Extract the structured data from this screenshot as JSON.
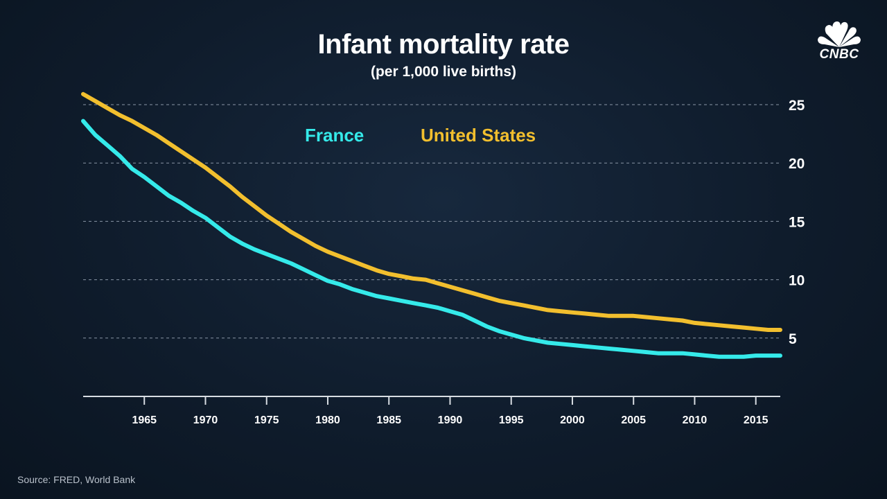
{
  "brand": {
    "logo_text": "CNBC",
    "peacock_colors": [
      "#ffffff"
    ]
  },
  "source_text": "Source: FRED, World Bank",
  "colors": {
    "france": "#35eaea",
    "united_states": "#f2bf2e",
    "grid": "#8a96a6",
    "axis": "#d8dde3"
  },
  "chart_data": {
    "type": "line",
    "title": "Infant mortality rate",
    "subtitle": "(per 1,000 live births)",
    "xlabel": "",
    "ylabel": "",
    "xlim": [
      1960,
      2017
    ],
    "ylim": [
      0,
      26
    ],
    "grid": true,
    "legend_placement": "top-left inside plot",
    "y_ticks": [
      5,
      10,
      15,
      20,
      25
    ],
    "x_ticks": [
      1965,
      1970,
      1975,
      1980,
      1985,
      1990,
      1995,
      2000,
      2005,
      2010,
      2015
    ],
    "x": [
      1960,
      1961,
      1962,
      1963,
      1964,
      1965,
      1966,
      1967,
      1968,
      1969,
      1970,
      1971,
      1972,
      1973,
      1974,
      1975,
      1976,
      1977,
      1978,
      1979,
      1980,
      1981,
      1982,
      1983,
      1984,
      1985,
      1986,
      1987,
      1988,
      1989,
      1990,
      1991,
      1992,
      1993,
      1994,
      1995,
      1996,
      1997,
      1998,
      1999,
      2000,
      2001,
      2002,
      2003,
      2004,
      2005,
      2006,
      2007,
      2008,
      2009,
      2010,
      2011,
      2012,
      2013,
      2014,
      2015,
      2016,
      2017
    ],
    "series": [
      {
        "name": "France",
        "values": [
          23.6,
          22.4,
          21.5,
          20.6,
          19.5,
          18.8,
          18.0,
          17.2,
          16.6,
          15.9,
          15.3,
          14.5,
          13.7,
          13.1,
          12.6,
          12.2,
          11.8,
          11.4,
          10.9,
          10.4,
          9.9,
          9.6,
          9.2,
          8.9,
          8.6,
          8.4,
          8.2,
          8.0,
          7.8,
          7.6,
          7.3,
          7.0,
          6.5,
          6.0,
          5.6,
          5.3,
          5.0,
          4.8,
          4.6,
          4.5,
          4.4,
          4.3,
          4.2,
          4.1,
          4.0,
          3.9,
          3.8,
          3.7,
          3.7,
          3.7,
          3.6,
          3.5,
          3.4,
          3.4,
          3.4,
          3.5,
          3.5,
          3.5
        ]
      },
      {
        "name": "United States",
        "values": [
          25.9,
          25.3,
          24.7,
          24.1,
          23.6,
          23.0,
          22.4,
          21.7,
          21.0,
          20.3,
          19.6,
          18.8,
          18.0,
          17.1,
          16.3,
          15.5,
          14.8,
          14.1,
          13.5,
          12.9,
          12.4,
          12.0,
          11.6,
          11.2,
          10.8,
          10.5,
          10.3,
          10.1,
          10.0,
          9.7,
          9.4,
          9.1,
          8.8,
          8.5,
          8.2,
          8.0,
          7.8,
          7.6,
          7.4,
          7.3,
          7.2,
          7.1,
          7.0,
          6.9,
          6.9,
          6.9,
          6.8,
          6.7,
          6.6,
          6.5,
          6.3,
          6.2,
          6.1,
          6.0,
          5.9,
          5.8,
          5.7,
          5.7
        ]
      }
    ],
    "legend": [
      "France",
      "United States"
    ]
  }
}
